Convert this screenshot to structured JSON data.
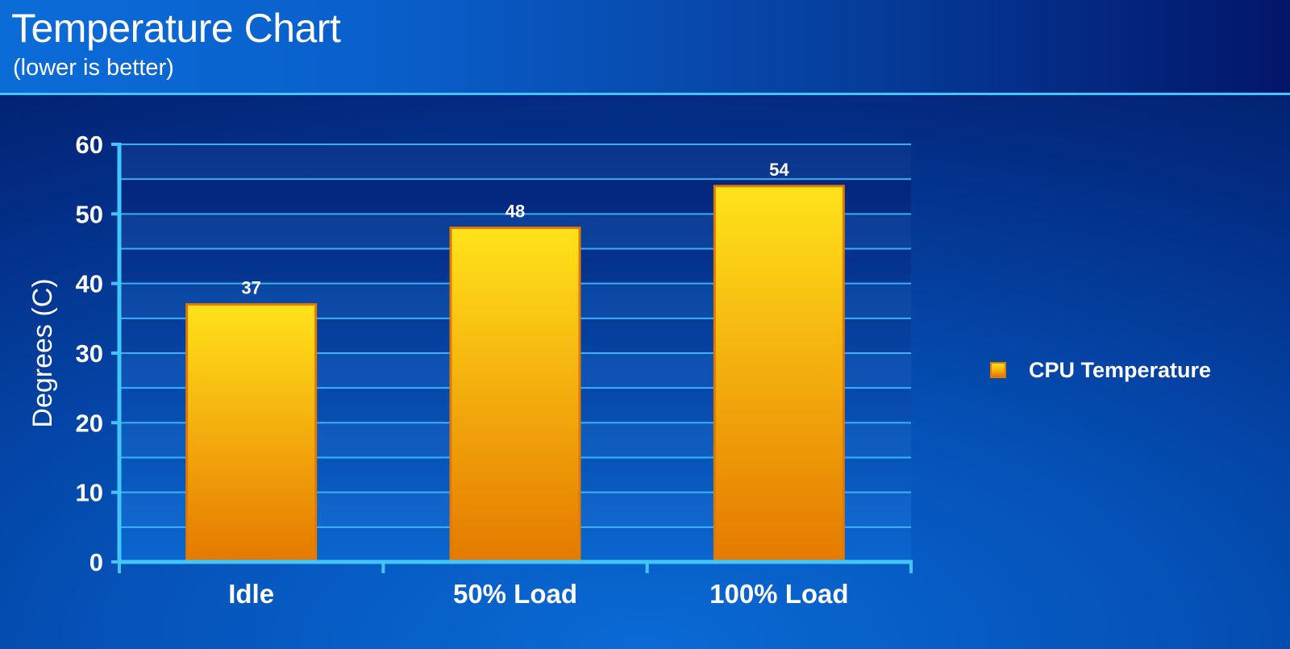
{
  "header": {
    "title": "Temperature Chart",
    "subtitle": "(lower is better)"
  },
  "chart_data": {
    "type": "bar",
    "title": "Temperature Chart",
    "subtitle": "(lower is better)",
    "categories": [
      "Idle",
      "50% Load",
      "100% Load"
    ],
    "series": [
      {
        "name": "CPU Temperature",
        "values": [
          37,
          48,
          54
        ]
      }
    ],
    "data_labels": [
      "37",
      "48",
      "54"
    ],
    "xlabel": "",
    "ylabel": "Degrees (C)",
    "ylim": [
      0,
      60
    ],
    "yticks": [
      0,
      10,
      20,
      30,
      40,
      50,
      60
    ],
    "grid": true,
    "legend_position": "right",
    "colors": {
      "bar_top": "#ffe31a",
      "bar_bottom": "#e57a00",
      "bar_border": "#e07a00",
      "axis": "#41c6ff",
      "grid": "#41c6ff"
    }
  }
}
